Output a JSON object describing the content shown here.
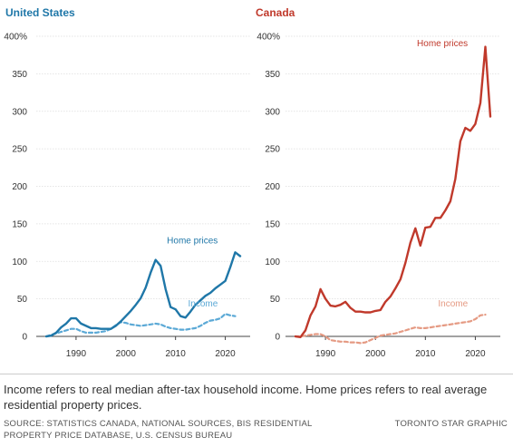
{
  "footer": {
    "note": "Income refers to real median after-tax household income. Home prices refers to real average residential property prices.",
    "source": "SOURCE: STATISTICS CANADA, NATIONAL SOURCES, BIS RESIDENTIAL PROPERTY PRICE DATABASE, U.S. CENSUS BUREAU",
    "credit": "TORONTO STAR GRAPHIC"
  },
  "chart_data": [
    {
      "type": "line",
      "title": "United States",
      "title_color": "#1f77a8",
      "xlabel": "",
      "ylabel": "",
      "xlim": [
        1982,
        2025
      ],
      "ylim": [
        0,
        400
      ],
      "x_ticks": [
        1990,
        2000,
        2010,
        2020
      ],
      "y_ticks": [
        0,
        50,
        100,
        150,
        200,
        250,
        300,
        350,
        400
      ],
      "y_tick_labels": [
        "0",
        "50",
        "100",
        "150",
        "200",
        "250",
        "300",
        "350",
        "400%"
      ],
      "grid": true,
      "series": [
        {
          "name": "Home prices",
          "color": "#1f77a8",
          "style": "solid",
          "x": [
            1984,
            1985,
            1986,
            1987,
            1988,
            1989,
            1990,
            1991,
            1992,
            1993,
            1994,
            1995,
            1996,
            1997,
            1998,
            1999,
            2000,
            2001,
            2002,
            2003,
            2004,
            2005,
            2006,
            2007,
            2008,
            2009,
            2010,
            2011,
            2012,
            2013,
            2014,
            2015,
            2016,
            2017,
            2018,
            2019,
            2020,
            2021,
            2022,
            2023
          ],
          "values": [
            0,
            1,
            5,
            12,
            17,
            24,
            24,
            17,
            14,
            11,
            11,
            10,
            10,
            10,
            14,
            20,
            27,
            34,
            42,
            51,
            65,
            85,
            102,
            94,
            63,
            39,
            36,
            27,
            25,
            33,
            42,
            48,
            54,
            58,
            64,
            69,
            74,
            92,
            112,
            107
          ]
        },
        {
          "name": "Income",
          "color": "#5ba9d6",
          "style": "dashed",
          "x": [
            1984,
            1985,
            1986,
            1987,
            1988,
            1989,
            1990,
            1991,
            1992,
            1993,
            1994,
            1995,
            1996,
            1997,
            1998,
            1999,
            2000,
            2001,
            2002,
            2003,
            2004,
            2005,
            2006,
            2007,
            2008,
            2009,
            2010,
            2011,
            2012,
            2013,
            2014,
            2015,
            2016,
            2017,
            2018,
            2019,
            2020,
            2021,
            2022
          ],
          "values": [
            0,
            2,
            4,
            6,
            8,
            10,
            10,
            7,
            5,
            5,
            5,
            6,
            7,
            10,
            15,
            19,
            18,
            16,
            15,
            14,
            15,
            16,
            17,
            16,
            13,
            11,
            10,
            9,
            9,
            10,
            11,
            14,
            18,
            21,
            22,
            24,
            30,
            28,
            27
          ]
        }
      ],
      "annotations": [
        {
          "text": "Home prices",
          "x": 2018.5,
          "y": 124,
          "color": "#1f77a8"
        },
        {
          "text": "Income",
          "x": 2018.5,
          "y": 40,
          "color": "#5ba9d6"
        }
      ]
    },
    {
      "type": "line",
      "title": "Canada",
      "title_color": "#c0392b",
      "xlabel": "",
      "ylabel": "",
      "xlim": [
        1982,
        2025
      ],
      "ylim": [
        0,
        400
      ],
      "x_ticks": [
        1990,
        2000,
        2010,
        2020
      ],
      "y_ticks": [
        0,
        50,
        100,
        150,
        200,
        250,
        300,
        350,
        400
      ],
      "y_tick_labels": [
        "0",
        "50",
        "100",
        "150",
        "200",
        "250",
        "300",
        "350",
        "400%"
      ],
      "grid": true,
      "series": [
        {
          "name": "Home prices",
          "color": "#c0392b",
          "style": "solid",
          "x": [
            1984,
            1985,
            1986,
            1987,
            1988,
            1989,
            1990,
            1991,
            1992,
            1993,
            1994,
            1995,
            1996,
            1997,
            1998,
            1999,
            2000,
            2001,
            2002,
            2003,
            2004,
            2005,
            2006,
            2007,
            2008,
            2009,
            2010,
            2011,
            2012,
            2013,
            2014,
            2015,
            2016,
            2017,
            2018,
            2019,
            2020,
            2021,
            2022,
            2023
          ],
          "values": [
            0,
            -1,
            8,
            28,
            40,
            63,
            50,
            41,
            40,
            42,
            46,
            38,
            33,
            33,
            32,
            32,
            34,
            35,
            46,
            53,
            64,
            76,
            98,
            125,
            144,
            121,
            145,
            146,
            158,
            158,
            168,
            180,
            210,
            260,
            278,
            274,
            283,
            311,
            386,
            293
          ]
        },
        {
          "name": "Income",
          "color": "#e59a83",
          "style": "dashed",
          "x": [
            1984,
            1985,
            1986,
            1987,
            1988,
            1989,
            1990,
            1991,
            1992,
            1993,
            1994,
            1995,
            1996,
            1997,
            1998,
            1999,
            2000,
            2001,
            2002,
            2003,
            2004,
            2005,
            2006,
            2007,
            2008,
            2009,
            2010,
            2011,
            2012,
            2013,
            2014,
            2015,
            2016,
            2017,
            2018,
            2019,
            2020,
            2021,
            2022
          ],
          "values": [
            0,
            0,
            1,
            2,
            3,
            3,
            0,
            -5,
            -6,
            -7,
            -7,
            -8,
            -8,
            -9,
            -8,
            -5,
            -2,
            1,
            2,
            3,
            4,
            6,
            8,
            10,
            12,
            11,
            11,
            12,
            13,
            14,
            15,
            16,
            17,
            18,
            19,
            20,
            23,
            28,
            29
          ]
        }
      ],
      "annotations": [
        {
          "text": "Home prices",
          "x": 2018.5,
          "y": 387,
          "color": "#c0392b"
        },
        {
          "text": "Income",
          "x": 2018.5,
          "y": 40,
          "color": "#e59a83"
        }
      ]
    }
  ]
}
